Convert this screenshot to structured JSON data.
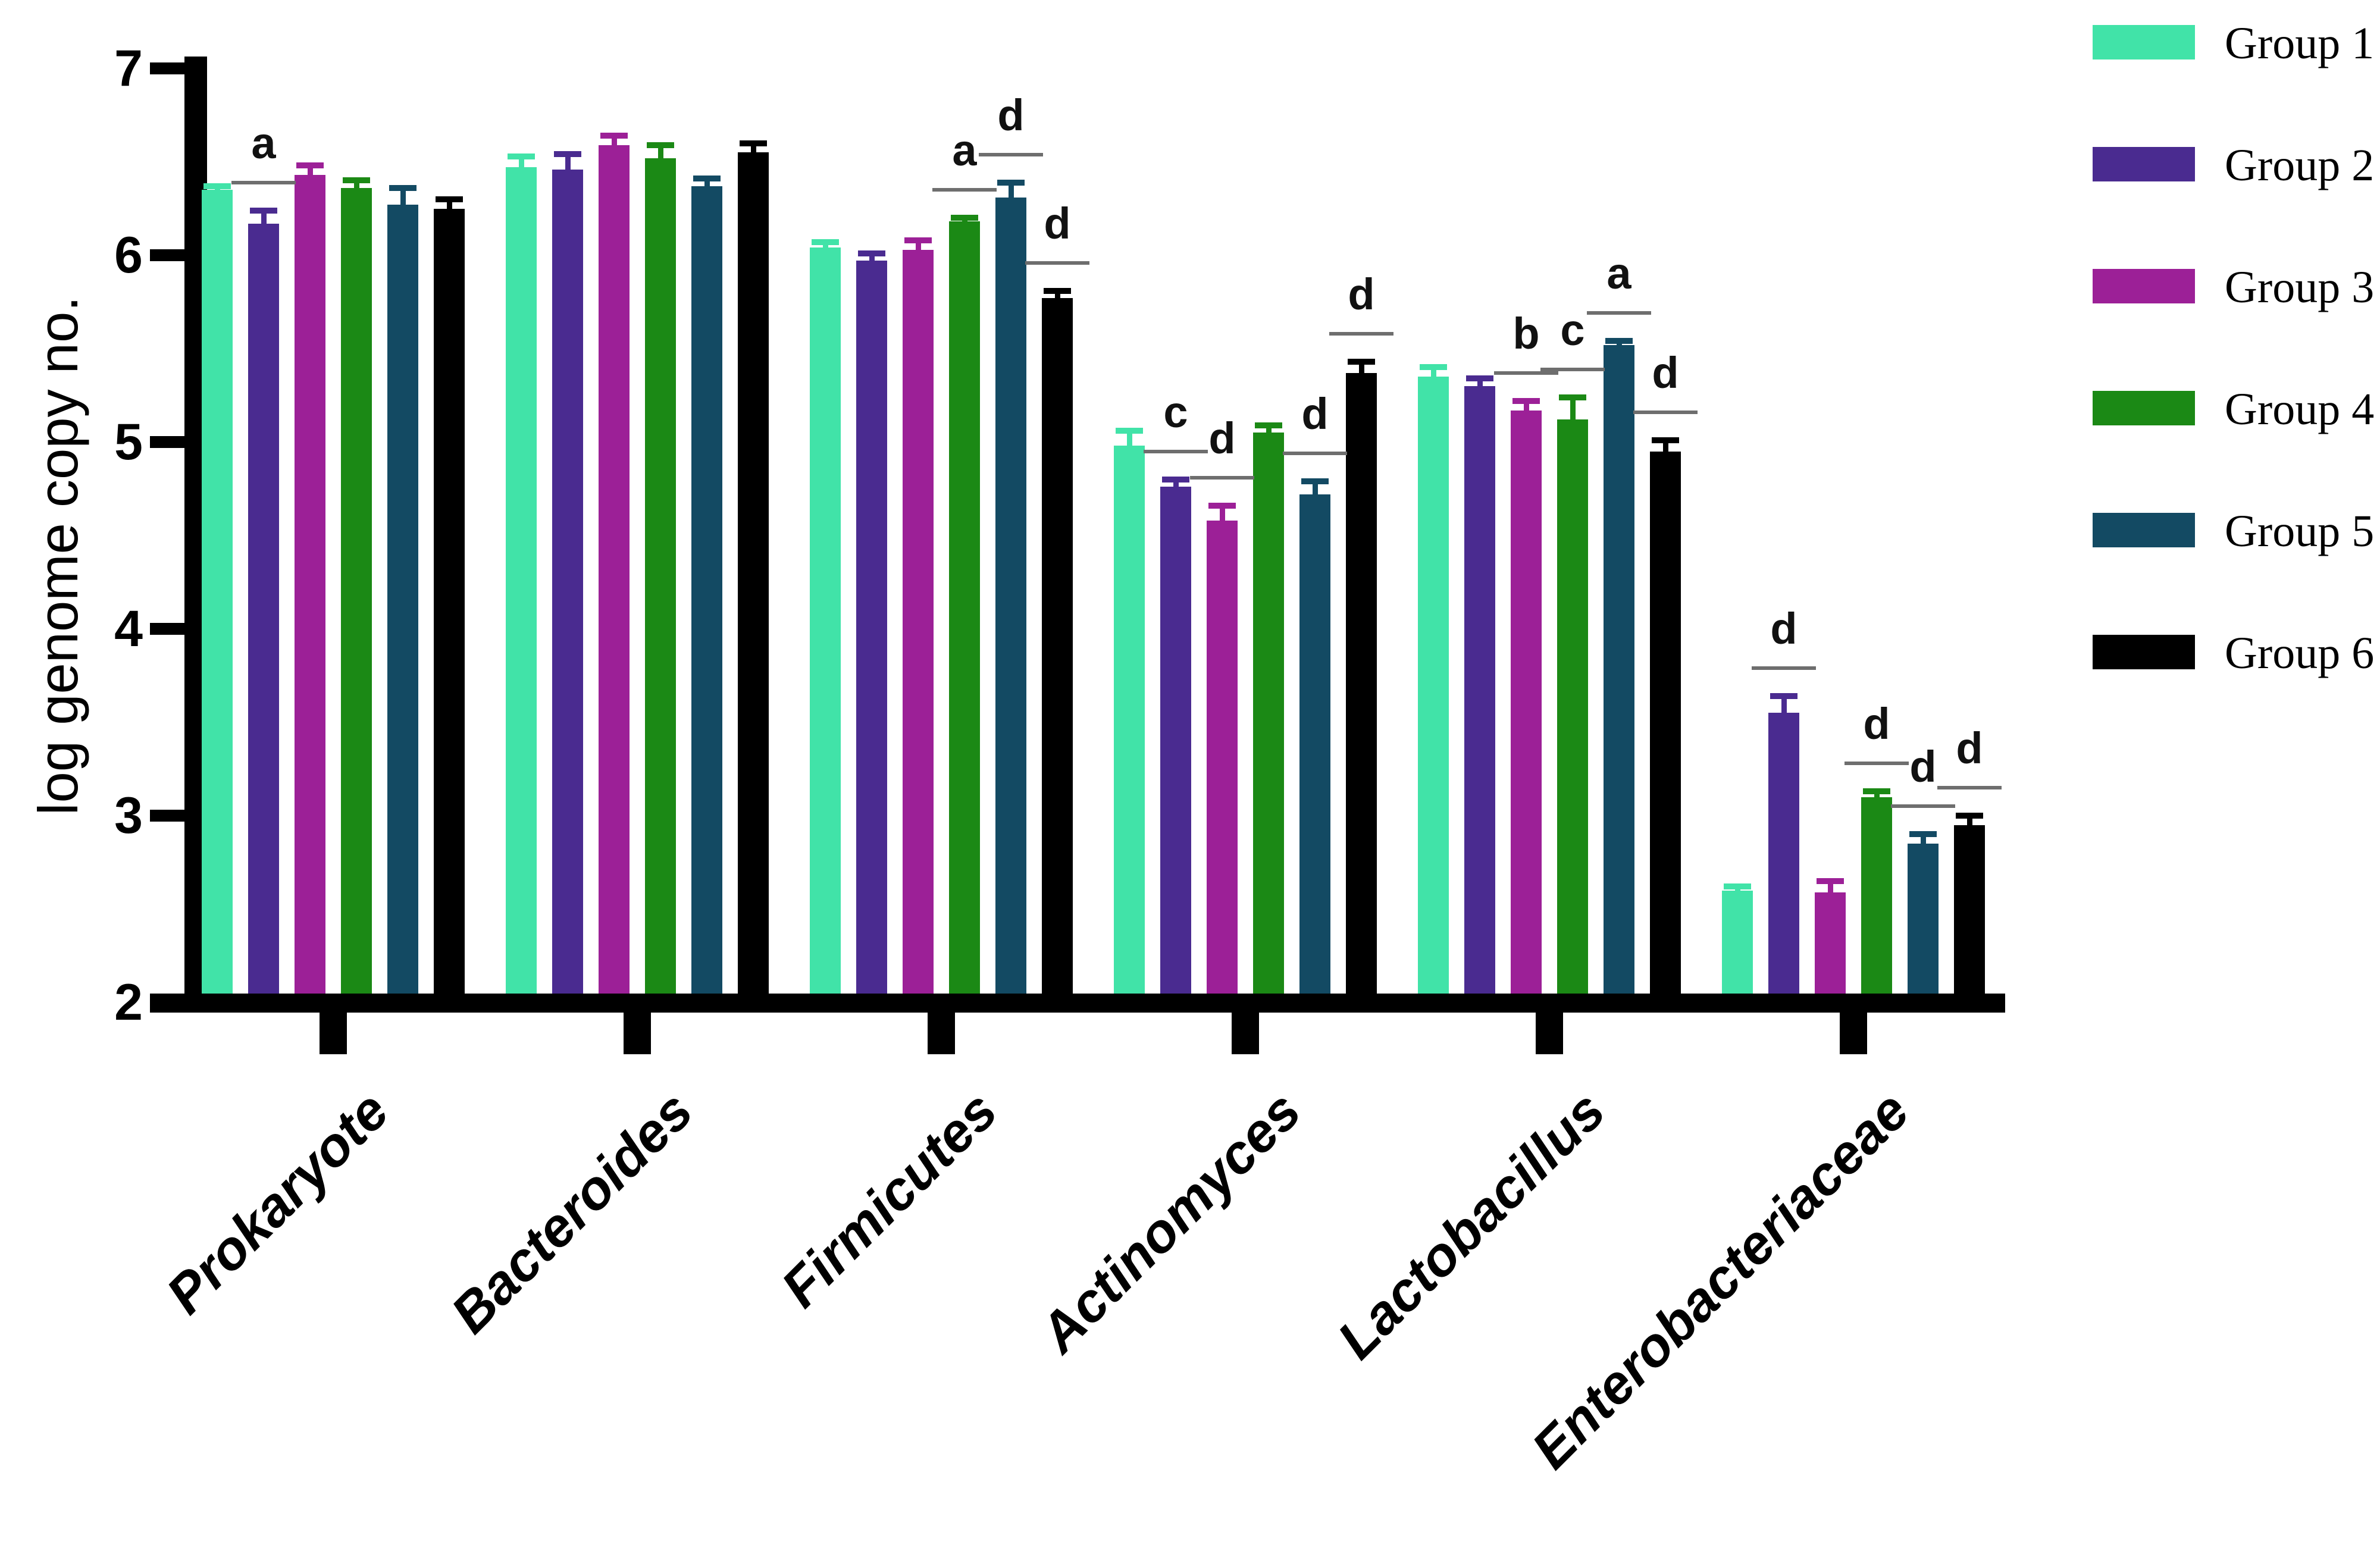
{
  "figure": {
    "background": "#ffffff",
    "axis_color": "#000000",
    "annotation_line_color": "#6e6e6e"
  },
  "chart_data": {
    "type": "bar",
    "title": "",
    "xlabel": "",
    "ylabel": "log genome copy no.",
    "ylim": [
      2,
      7
    ],
    "yticks": [
      2,
      3,
      4,
      5,
      6,
      7
    ],
    "grid": false,
    "legend_position": "right-top",
    "categories": [
      "Prokaryote",
      "Bacteroides",
      "Firmicutes",
      "Actinomyces",
      "Lactobacillus",
      "Enterobacteriaceae"
    ],
    "series": [
      {
        "name": "Group 1",
        "color": "#41e3a8",
        "values": [
          6.35,
          6.47,
          6.04,
          4.98,
          5.35,
          2.6
        ],
        "errors": [
          0.02,
          0.06,
          0.03,
          0.08,
          0.05,
          0.02
        ]
      },
      {
        "name": "Group 2",
        "color": "#4a2b90",
        "values": [
          6.17,
          6.46,
          5.97,
          4.76,
          5.3,
          3.55
        ],
        "errors": [
          0.07,
          0.08,
          0.04,
          0.04,
          0.04,
          0.09
        ]
      },
      {
        "name": "Group 3",
        "color": "#9c2097",
        "values": [
          6.43,
          6.59,
          6.03,
          4.58,
          5.17,
          2.59
        ],
        "errors": [
          0.05,
          0.05,
          0.05,
          0.08,
          0.05,
          0.06
        ]
      },
      {
        "name": "Group 4",
        "color": "#1b8915",
        "values": [
          6.36,
          6.52,
          6.18,
          5.05,
          5.12,
          3.1
        ],
        "errors": [
          0.04,
          0.07,
          0.02,
          0.04,
          0.12,
          0.03
        ]
      },
      {
        "name": "Group 5",
        "color": "#134a63",
        "values": [
          6.27,
          6.37,
          6.31,
          4.72,
          5.52,
          2.85
        ],
        "errors": [
          0.09,
          0.04,
          0.08,
          0.07,
          0.02,
          0.05
        ]
      },
      {
        "name": "Group 6",
        "color": "#000000",
        "values": [
          6.25,
          6.55,
          5.77,
          5.37,
          4.95,
          2.95
        ],
        "errors": [
          0.05,
          0.05,
          0.04,
          0.06,
          0.06,
          0.05
        ]
      }
    ],
    "annotations": [
      {
        "category": 0,
        "series": 1,
        "letter": "a"
      },
      {
        "category": 2,
        "series": 3,
        "letter": "a"
      },
      {
        "category": 2,
        "series": 4,
        "letter": "d"
      },
      {
        "category": 2,
        "series": 5,
        "letter": "d"
      },
      {
        "category": 3,
        "series": 1,
        "letter": "c"
      },
      {
        "category": 3,
        "series": 2,
        "letter": "d"
      },
      {
        "category": 3,
        "series": 4,
        "letter": "d"
      },
      {
        "category": 3,
        "series": 5,
        "letter": "d"
      },
      {
        "category": 4,
        "series": 2,
        "letter": "b"
      },
      {
        "category": 4,
        "series": 3,
        "letter": "c"
      },
      {
        "category": 4,
        "series": 4,
        "letter": "a"
      },
      {
        "category": 4,
        "series": 5,
        "letter": "d"
      },
      {
        "category": 5,
        "series": 1,
        "letter": "d"
      },
      {
        "category": 5,
        "series": 3,
        "letter": "d"
      },
      {
        "category": 5,
        "series": 4,
        "letter": "d"
      },
      {
        "category": 5,
        "series": 5,
        "letter": "d"
      }
    ]
  }
}
